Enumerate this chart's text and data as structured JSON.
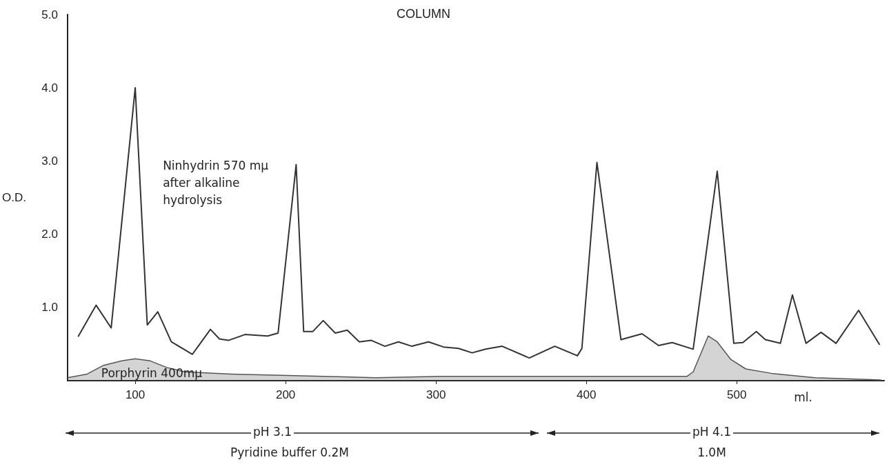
{
  "chart_data": {
    "type": "line",
    "title": "COLUMN",
    "xlabel": "ml.",
    "ylabel": "O.D.",
    "xlim": [
      55,
      598
    ],
    "xticks": [
      100,
      200,
      300,
      400,
      500
    ],
    "ylim": [
      0,
      5
    ],
    "yticks": [
      {
        "value": 1,
        "label": "1.0"
      },
      {
        "value": 2,
        "label": "2.0"
      },
      {
        "value": 3,
        "label": "3.0"
      },
      {
        "value": 4,
        "label": "4.0"
      },
      {
        "value": 5,
        "label": "5.0"
      }
    ],
    "grid": false,
    "legend": false,
    "marker": "none",
    "line_style": "solid",
    "series": [
      {
        "name": "Ninhydrin 570 mμ after alkaline hydrolysis",
        "color": "#333333",
        "x": [
          62,
          74,
          84,
          100,
          108,
          115,
          124,
          138,
          150,
          156,
          162,
          173,
          188,
          195,
          207,
          212,
          218,
          225,
          233,
          241,
          249,
          257,
          266,
          275,
          284,
          295,
          305,
          315,
          324,
          333,
          344,
          362,
          379,
          394,
          397,
          407,
          423,
          437,
          448,
          457,
          471,
          487,
          498,
          504,
          513,
          519,
          529,
          537,
          546,
          556,
          566,
          581,
          595
        ],
        "values": [
          0.6,
          1.03,
          0.72,
          4.0,
          0.76,
          0.94,
          0.53,
          0.36,
          0.7,
          0.57,
          0.55,
          0.63,
          0.61,
          0.65,
          2.95,
          0.67,
          0.67,
          0.82,
          0.65,
          0.69,
          0.53,
          0.55,
          0.47,
          0.53,
          0.47,
          0.53,
          0.46,
          0.44,
          0.38,
          0.43,
          0.47,
          0.31,
          0.47,
          0.34,
          0.44,
          2.98,
          0.56,
          0.64,
          0.48,
          0.52,
          0.43,
          2.86,
          0.51,
          0.52,
          0.67,
          0.56,
          0.51,
          1.17,
          0.51,
          0.66,
          0.51,
          0.96,
          0.49
        ]
      },
      {
        "name": "Porphyrin 400mμ",
        "type": "area",
        "color": "#555555",
        "x": [
          55,
          68,
          79,
          91,
          100,
          110,
          121,
          133,
          164,
          202,
          260,
          303,
          379,
          467,
          471,
          481,
          487,
          496,
          506,
          523,
          552,
          596
        ],
        "values": [
          0.04,
          0.09,
          0.21,
          0.27,
          0.3,
          0.27,
          0.18,
          0.12,
          0.09,
          0.07,
          0.04,
          0.06,
          0.06,
          0.06,
          0.12,
          0.61,
          0.53,
          0.29,
          0.16,
          0.1,
          0.04,
          0.01
        ]
      }
    ],
    "annotations": [
      "pH 3.1",
      "Pyridine buffer 0.2M",
      "pH 4.1",
      "1.0M"
    ]
  }
}
